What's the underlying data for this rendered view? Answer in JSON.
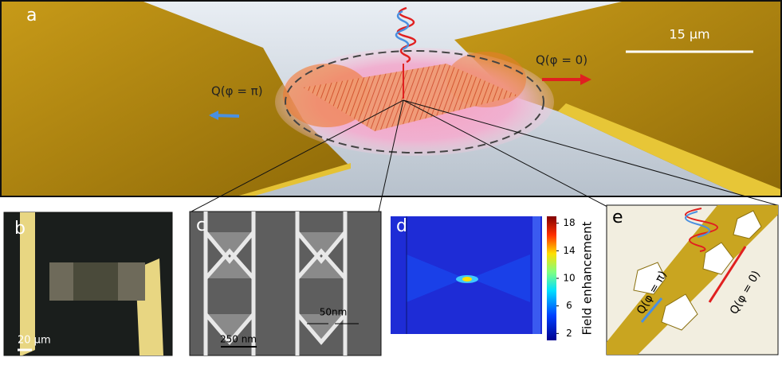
{
  "panels": {
    "a": {
      "label": "a",
      "scale_bar": "15 µm",
      "left_arrow": "Q(φ = π)",
      "right_arrow": "Q(φ = 0)"
    },
    "b": {
      "label": "b",
      "scale_bar": "20 µm"
    },
    "c": {
      "label": "c",
      "gap": "50nm",
      "scale_bar": "250 nm"
    },
    "d": {
      "label": "d",
      "colorbar": {
        "label": "Field enhancement",
        "range": [
          1,
          19
        ],
        "ticks": [
          2,
          6,
          10,
          14,
          18
        ]
      }
    },
    "e": {
      "label": "e",
      "left_arrow": "Q(φ = π)",
      "right_arrow": "Q(φ = 0)"
    }
  }
}
